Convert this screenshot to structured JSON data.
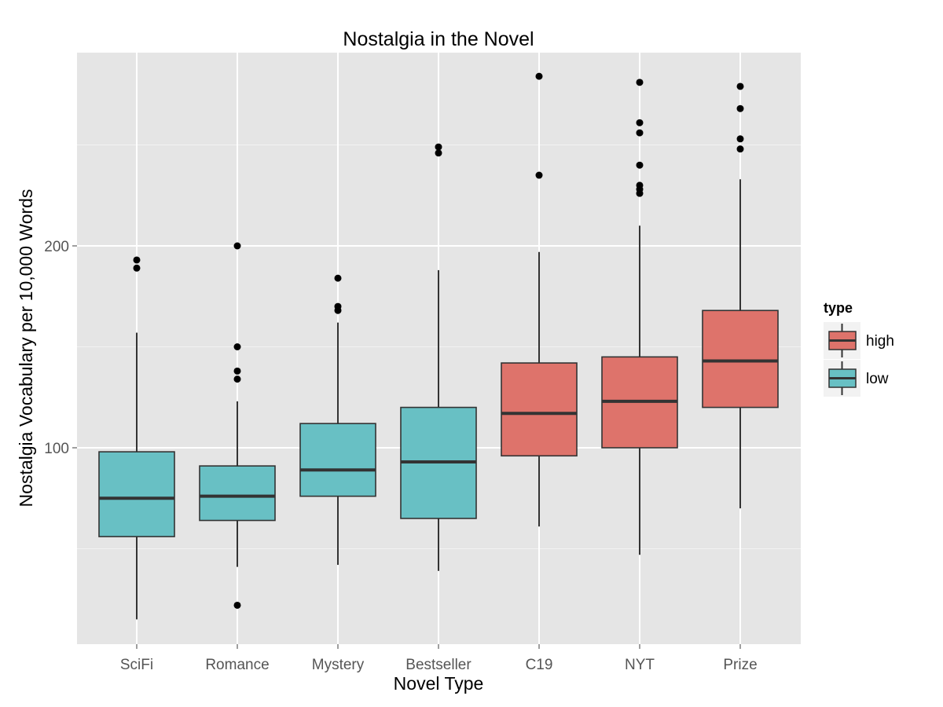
{
  "chart_data": {
    "type": "boxplot",
    "title": "Nostalgia in the Novel",
    "xlabel": "Novel Type",
    "ylabel": "Nostalgia Vocabulary per 10,000 Words",
    "yticks": [
      100,
      200
    ],
    "ylim": [
      0,
      295
    ],
    "grid": true,
    "legend": {
      "title": "type",
      "placement": "right",
      "entries": [
        {
          "key": "high",
          "label": "high",
          "color": "#DE736B"
        },
        {
          "key": "low",
          "label": "low",
          "color": "#68C0C4"
        }
      ]
    },
    "categories": [
      "SciFi",
      "Romance",
      "Mystery",
      "Bestseller",
      "C19",
      "NYT",
      "Prize"
    ],
    "boxes": [
      {
        "category": "SciFi",
        "type": "low",
        "whisker_low": 15,
        "q1": 56,
        "median": 75,
        "q3": 98,
        "whisker_high": 157,
        "outliers": [
          189,
          193
        ]
      },
      {
        "category": "Romance",
        "type": "low",
        "whisker_low": 41,
        "q1": 64,
        "median": 76,
        "q3": 91,
        "whisker_high": 123,
        "outliers": [
          22,
          134,
          138,
          150,
          200
        ]
      },
      {
        "category": "Mystery",
        "type": "low",
        "whisker_low": 42,
        "q1": 76,
        "median": 89,
        "q3": 112,
        "whisker_high": 162,
        "outliers": [
          168,
          170,
          184
        ]
      },
      {
        "category": "Bestseller",
        "type": "low",
        "whisker_low": 39,
        "q1": 65,
        "median": 93,
        "q3": 120,
        "whisker_high": 188,
        "outliers": [
          246,
          249
        ]
      },
      {
        "category": "C19",
        "type": "high",
        "whisker_low": 61,
        "q1": 96,
        "median": 117,
        "q3": 142,
        "whisker_high": 197,
        "outliers": [
          235,
          284
        ]
      },
      {
        "category": "NYT",
        "type": "high",
        "whisker_low": 47,
        "q1": 100,
        "median": 123,
        "q3": 145,
        "whisker_high": 210,
        "outliers": [
          226,
          228,
          230,
          240,
          256,
          261,
          281
        ]
      },
      {
        "category": "Prize",
        "type": "high",
        "whisker_low": 70,
        "q1": 120,
        "median": 143,
        "q3": 168,
        "whisker_high": 233,
        "outliers": [
          248,
          253,
          268,
          279
        ]
      }
    ],
    "colors": {
      "panel_background": "#E5E5E5",
      "grid_major": "#FFFFFF",
      "grid_minor": "#F2F2F2",
      "box_outline": "#333333",
      "outlier": "#000000"
    }
  }
}
